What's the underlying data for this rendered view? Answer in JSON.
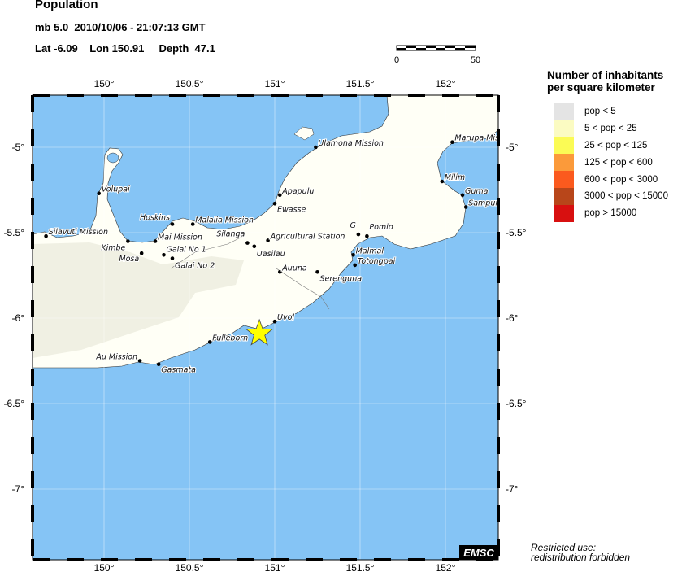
{
  "header": {
    "title": "Population",
    "event_line": "mb 5.0  2010/10/06 - 21:07:13 GMT",
    "location_line": "Lat -6.09    Lon 150.91     Depth  47.1"
  },
  "epicenter": {
    "lat": -6.09,
    "lon": 150.91,
    "marker": "yellow-star",
    "color": "#ffff00"
  },
  "scale_bar": {
    "labels": [
      "0",
      "50"
    ]
  },
  "axes": {
    "lon_ticks": [
      150,
      150.5,
      151,
      151.5,
      152
    ],
    "lon_labels": [
      "150°",
      "150.5°",
      "151°",
      "151.5°",
      "152°"
    ],
    "lat_ticks": [
      -5,
      -5.5,
      -6,
      -6.5,
      -7
    ],
    "lat_labels": [
      "-5°",
      "-5.5°",
      "-6°",
      "-6.5°",
      "-7°"
    ]
  },
  "colors": {
    "sea": "#85c4f5",
    "land": "#fffff6",
    "low_land": "#ececdf"
  },
  "cities": [
    {
      "name": "Volupai",
      "lon": 149.97,
      "lat": -5.27
    },
    {
      "name": "Silavuti Mission",
      "lon": 149.66,
      "lat": -5.52
    },
    {
      "name": "Kimbe",
      "lon": 150.14,
      "lat": -5.55
    },
    {
      "name": "Mai Mission",
      "lon": 150.3,
      "lat": -5.55
    },
    {
      "name": "Hoskins",
      "lon": 150.4,
      "lat": -5.45
    },
    {
      "name": "Malalia Mission",
      "lon": 150.52,
      "lat": -5.45
    },
    {
      "name": "Mosa",
      "lon": 150.22,
      "lat": -5.62
    },
    {
      "name": "Galai No 1",
      "lon": 150.35,
      "lat": -5.63
    },
    {
      "name": "Galai No 2",
      "lon": 150.4,
      "lat": -5.65
    },
    {
      "name": "Silanga",
      "lon": 150.84,
      "lat": -5.56
    },
    {
      "name": "Uasilau",
      "lon": 150.88,
      "lat": -5.58
    },
    {
      "name": "Agricultural Station",
      "lon": 150.96,
      "lat": -5.545
    },
    {
      "name": "Apapulu",
      "lon": 151.03,
      "lat": -5.28
    },
    {
      "name": "Ewasse",
      "lon": 151.0,
      "lat": -5.33
    },
    {
      "name": "Ulamona Mission",
      "lon": 151.24,
      "lat": -5.0
    },
    {
      "name": "Marupa Mission",
      "lon": 152.04,
      "lat": -4.97
    },
    {
      "name": "Milim",
      "lon": 151.98,
      "lat": -5.2
    },
    {
      "name": "Guma",
      "lon": 152.1,
      "lat": -5.28
    },
    {
      "name": "Sampun",
      "lon": 152.12,
      "lat": -5.35
    },
    {
      "name": "G",
      "lon": 151.49,
      "lat": -5.51
    },
    {
      "name": "Pomio",
      "lon": 151.54,
      "lat": -5.52
    },
    {
      "name": "Malmal",
      "lon": 151.46,
      "lat": -5.63
    },
    {
      "name": "Totongpai",
      "lon": 151.47,
      "lat": -5.69
    },
    {
      "name": "Auuna",
      "lon": 151.03,
      "lat": -5.73
    },
    {
      "name": "Serenguna",
      "lon": 151.25,
      "lat": -5.73
    },
    {
      "name": "Uvol",
      "lon": 151.0,
      "lat": -6.02
    },
    {
      "name": "Fulleborn",
      "lon": 150.62,
      "lat": -6.14
    },
    {
      "name": "Au Mission",
      "lon": 150.21,
      "lat": -6.25
    },
    {
      "name": "Gasmata",
      "lon": 150.32,
      "lat": -6.27
    }
  ],
  "legend": {
    "title_line1": "Number of inhabitants",
    "title_line2": "per square kilometer",
    "items": [
      {
        "label": "pop < 5",
        "color": "#e4e4e4"
      },
      {
        "label": "5 < pop < 25",
        "color": "#fbfbc2"
      },
      {
        "label": "25 < pop < 125",
        "color": "#fbfb55"
      },
      {
        "label": "125 < pop < 600",
        "color": "#fb9a3a"
      },
      {
        "label": "600 < pop < 3000",
        "color": "#fb5a1e"
      },
      {
        "label": "3000 < pop < 15000",
        "color": "#b8461a"
      },
      {
        "label": "pop > 15000",
        "color": "#d81010"
      }
    ]
  },
  "watermark": "EMSC",
  "restriction": {
    "line1": "Restricted use:",
    "line2": "redistribution forbidden"
  }
}
